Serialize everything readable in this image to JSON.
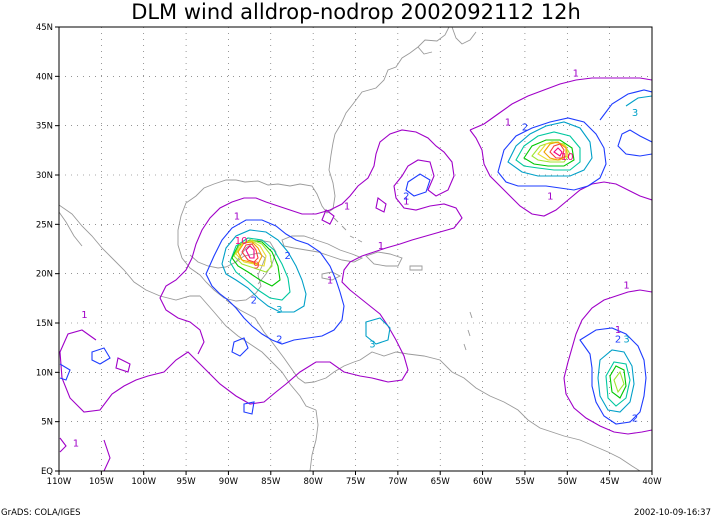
{
  "title": "DLM wind alldrop-nodrop 2002092112 12h",
  "footer_left": "GrADS: COLA/IGES",
  "footer_right": "2002-10-09-16:37",
  "lon_labels": [
    "110W",
    "105W",
    "100W",
    "95W",
    "90W",
    "85W",
    "80W",
    "75W",
    "70W",
    "65W",
    "60W",
    "55W",
    "50W",
    "45W",
    "40W"
  ],
  "lat_labels": [
    "EQ",
    "5N",
    "10N",
    "15N",
    "20N",
    "25N",
    "30N",
    "35N",
    "40N",
    "45N"
  ],
  "extent": {
    "lon_min": -110,
    "lon_max": -40,
    "lat_min": 0,
    "lat_max": 45
  },
  "contour_colors": {
    "1": "#a000c8",
    "2": "#1e3cff",
    "3": "#00a0c8",
    "4": "#00c8a0",
    "5": "#00c800",
    "6": "#a0e632",
    "7": "#e6dc32",
    "8": "#f0a000",
    "9": "#fa3c3c",
    "10": "#f00082"
  },
  "contour_labels": [
    {
      "text": "1",
      "lon": -107,
      "lat": 15.5,
      "level": "1"
    },
    {
      "text": "1",
      "lon": -89,
      "lat": 25.5,
      "level": "1"
    },
    {
      "text": "1",
      "lon": -69,
      "lat": 27,
      "level": "1"
    },
    {
      "text": "1",
      "lon": -76,
      "lat": 26.5,
      "level": "1"
    },
    {
      "text": "1",
      "lon": -72,
      "lat": 22.5,
      "level": "1"
    },
    {
      "text": "1",
      "lon": -78,
      "lat": 19,
      "level": "1"
    },
    {
      "text": "1",
      "lon": -57,
      "lat": 35,
      "level": "1"
    },
    {
      "text": "1",
      "lon": -52,
      "lat": 27.5,
      "level": "1"
    },
    {
      "text": "1",
      "lon": -49,
      "lat": 40,
      "level": "1"
    },
    {
      "text": "1",
      "lon": -44,
      "lat": 14,
      "level": "1"
    },
    {
      "text": "1",
      "lon": -43,
      "lat": 18.5,
      "level": "1"
    },
    {
      "text": "1",
      "lon": -108,
      "lat": 2.5,
      "level": "1"
    },
    {
      "text": "2",
      "lon": -69,
      "lat": 27.5,
      "level": "2"
    },
    {
      "text": "2",
      "lon": -87,
      "lat": 17,
      "level": "2"
    },
    {
      "text": "2",
      "lon": -84,
      "lat": 13,
      "level": "2"
    },
    {
      "text": "2",
      "lon": -83,
      "lat": 21.5,
      "level": "2"
    },
    {
      "text": "2",
      "lon": -55,
      "lat": 34.5,
      "level": "2"
    },
    {
      "text": "2",
      "lon": -44,
      "lat": 13,
      "level": "2"
    },
    {
      "text": "2",
      "lon": -42,
      "lat": 5,
      "level": "2"
    },
    {
      "text": "2",
      "lon": -39,
      "lat": 37,
      "level": "2"
    },
    {
      "text": "3",
      "lon": -84,
      "lat": 16,
      "level": "3"
    },
    {
      "text": "3",
      "lon": -43,
      "lat": 13,
      "level": "3"
    },
    {
      "text": "3",
      "lon": -73,
      "lat": 12.5,
      "level": "3"
    },
    {
      "text": "10",
      "lon": -88.5,
      "lat": 23,
      "level": "10"
    },
    {
      "text": "9",
      "lon": -86.7,
      "lat": 20.5,
      "level": "9"
    },
    {
      "text": "10",
      "lon": -50,
      "lat": 31.5,
      "level": "10"
    },
    {
      "text": "3",
      "lon": -42,
      "lat": 36,
      "level": "3"
    }
  ]
}
